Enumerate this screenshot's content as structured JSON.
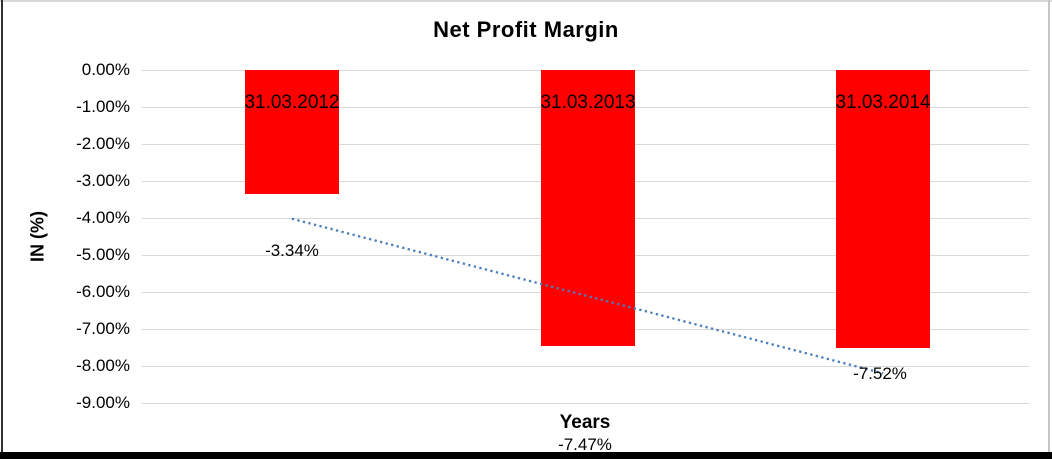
{
  "chart_data": {
    "type": "bar",
    "title": "Net Profit Margin",
    "xlabel": "Years",
    "ylabel": "IN (%)",
    "categories": [
      "31.03.2012",
      "31.03.2013",
      "31.03.2014"
    ],
    "series": [
      {
        "name": "Net Profit Margin",
        "color": "#ff0000",
        "values": [
          -3.34,
          -7.47,
          -7.52
        ]
      }
    ],
    "data_labels": [
      "-3.34%",
      "-7.47%",
      "-7.52%"
    ],
    "ylim": [
      -9,
      0
    ],
    "ytick_labels": [
      "0.00%",
      "-1.00%",
      "-2.00%",
      "-3.00%",
      "-4.00%",
      "-5.00%",
      "-6.00%",
      "-7.00%",
      "-8.00%",
      "-9.00%"
    ],
    "grid": true,
    "gridline_color": "#d9d9d9",
    "legend": "none",
    "bar_color": "#ff0000",
    "trendline": {
      "type": "linear",
      "style": "dotted",
      "color": "#4a7ebb",
      "start_value": -4.02,
      "end_value": -8.2
    }
  }
}
